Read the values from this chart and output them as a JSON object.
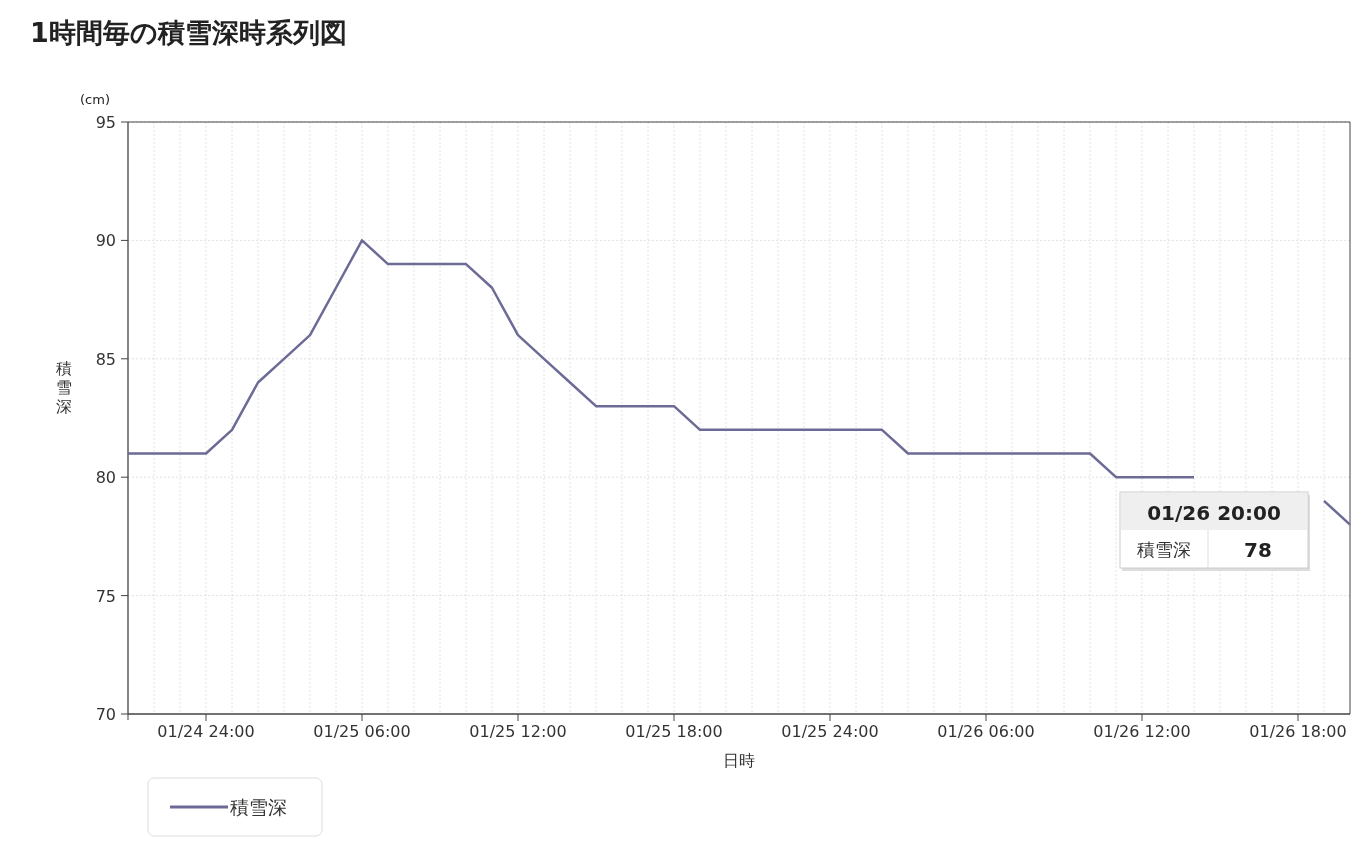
{
  "chart_data": {
    "type": "line",
    "title": "1時間毎の積雪深時系列図",
    "xlabel": "日時",
    "ylabel": "積雪深",
    "annotations": [
      "(cm)",
      "01/26 20:00",
      "積雪深",
      "78"
    ],
    "categories": [
      null,
      null,
      null,
      "01/24 24:00",
      null,
      null,
      null,
      null,
      null,
      "01/25 06:00",
      null,
      null,
      null,
      null,
      null,
      "01/25 12:00",
      null,
      null,
      null,
      null,
      null,
      "01/25 18:00",
      null,
      null,
      null,
      null,
      null,
      "01/25 24:00",
      null,
      null,
      null,
      null,
      null,
      "01/26 06:00",
      null,
      null,
      null,
      null,
      null,
      "01/26 12:00",
      null,
      null,
      null,
      null,
      null,
      "01/26 18:00",
      null,
      null
    ],
    "series": [
      {
        "name": "積雪深",
        "color": "#6b6b96",
        "values": [
          81,
          81,
          81,
          81,
          82,
          84,
          85,
          86,
          88,
          90,
          89,
          89,
          89,
          89,
          88,
          86,
          85,
          84,
          83,
          83,
          83,
          83,
          82,
          82,
          82,
          82,
          82,
          82,
          82,
          82,
          81,
          81,
          81,
          81,
          81,
          81,
          81,
          81,
          80,
          80,
          80,
          80,
          null,
          null,
          null,
          null,
          79,
          78
        ]
      }
    ],
    "ylim": [
      70,
      95
    ],
    "yticks": [
      70,
      75,
      80,
      85,
      90,
      95
    ],
    "grid": true,
    "legend": "bottom left",
    "marker": "none",
    "line_style": "solid"
  }
}
